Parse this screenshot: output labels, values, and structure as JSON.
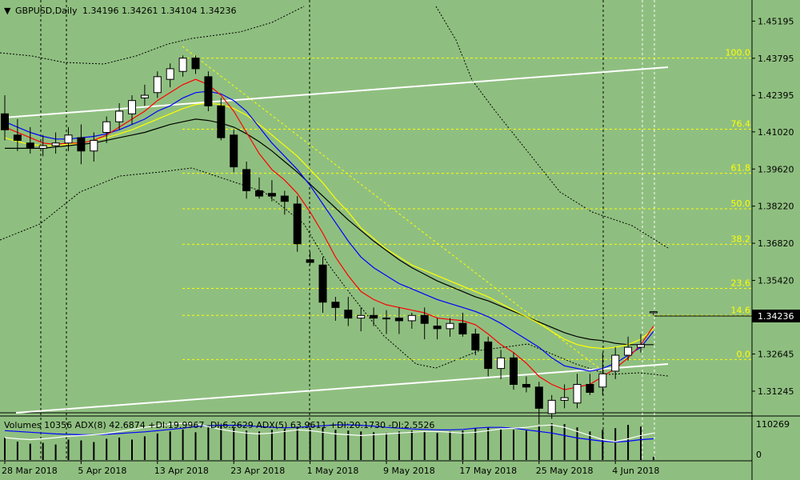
{
  "header": {
    "menu_glyph": "▼",
    "symbol_text": "GBPUSD,Daily",
    "open": "1.34196",
    "high": "1.34261",
    "low": "1.34104",
    "close": "1.34236"
  },
  "indicator_header": "Volumes 10356  ADX(8) 42.6874  +DI:19.9967 -DI:6.2629  ADX(5) 63.9611 +DI:20.1730 -DI:2.5526",
  "price_axis_labels": [
    "1.45195",
    "1.43795",
    "1.42395",
    "1.41020",
    "1.39620",
    "1.38220",
    "1.36820",
    "1.35420",
    "1.34020",
    "1.32645",
    "1.31245"
  ],
  "current_price_label": "1.34236",
  "volume_axis_labels": [
    "110269",
    "0"
  ],
  "date_labels": [
    "28 Mar 2018",
    "5 Apr 2018",
    "13 Apr 2018",
    "23 Apr 2018",
    "1 May 2018",
    "9 May 2018",
    "17 May 2018",
    "25 May 2018",
    "4 Jun 2018"
  ],
  "fib_levels": [
    {
      "label": "100.0",
      "price": 1.438
    },
    {
      "label": "76.4",
      "price": 1.4112
    },
    {
      "label": "61.8",
      "price": 1.3946
    },
    {
      "label": "50.0",
      "price": 1.3812
    },
    {
      "label": "38.2",
      "price": 1.3678
    },
    {
      "label": "23.6",
      "price": 1.3512
    },
    {
      "label": "14.6",
      "price": 1.341
    },
    {
      "label": "0.0",
      "price": 1.3244
    }
  ],
  "colors": {
    "background": "#8fbf80",
    "bull_candle": "#ffffff",
    "bear_candle": "#000000",
    "ma_fast": "#ff0000",
    "ma_mid": "#0000ff",
    "ma_slow": "#ffff00",
    "ma_long": "#000000",
    "fib": "#ffff00",
    "trendline": "#ffffff",
    "volume_bar": "#000000",
    "adx_line": "#0000ff",
    "di_line": "#ffffff"
  },
  "chart_data": {
    "type": "candlestick",
    "symbol": "GBPUSD",
    "timeframe": "Daily",
    "ylim": [
      1.3055,
      1.4575
    ],
    "candles": [
      {
        "o": 1.417,
        "h": 1.424,
        "l": 1.407,
        "c": 1.411
      },
      {
        "o": 1.409,
        "h": 1.415,
        "l": 1.403,
        "c": 1.407
      },
      {
        "o": 1.406,
        "h": 1.412,
        "l": 1.402,
        "c": 1.404
      },
      {
        "o": 1.404,
        "h": 1.409,
        "l": 1.401,
        "c": 1.405
      },
      {
        "o": 1.405,
        "h": 1.41,
        "l": 1.402,
        "c": 1.406
      },
      {
        "o": 1.406,
        "h": 1.412,
        "l": 1.403,
        "c": 1.409
      },
      {
        "o": 1.408,
        "h": 1.413,
        "l": 1.398,
        "c": 1.403
      },
      {
        "o": 1.403,
        "h": 1.41,
        "l": 1.399,
        "c": 1.407
      },
      {
        "o": 1.41,
        "h": 1.416,
        "l": 1.406,
        "c": 1.414
      },
      {
        "o": 1.414,
        "h": 1.421,
        "l": 1.411,
        "c": 1.418
      },
      {
        "o": 1.417,
        "h": 1.424,
        "l": 1.413,
        "c": 1.422
      },
      {
        "o": 1.423,
        "h": 1.428,
        "l": 1.42,
        "c": 1.424
      },
      {
        "o": 1.425,
        "h": 1.433,
        "l": 1.423,
        "c": 1.431
      },
      {
        "o": 1.43,
        "h": 1.436,
        "l": 1.427,
        "c": 1.434
      },
      {
        "o": 1.433,
        "h": 1.439,
        "l": 1.431,
        "c": 1.438
      },
      {
        "o": 1.438,
        "h": 1.439,
        "l": 1.432,
        "c": 1.434
      },
      {
        "o": 1.431,
        "h": 1.433,
        "l": 1.418,
        "c": 1.42
      },
      {
        "o": 1.42,
        "h": 1.423,
        "l": 1.407,
        "c": 1.408
      },
      {
        "o": 1.409,
        "h": 1.411,
        "l": 1.395,
        "c": 1.397
      },
      {
        "o": 1.396,
        "h": 1.399,
        "l": 1.385,
        "c": 1.388
      },
      {
        "o": 1.388,
        "h": 1.393,
        "l": 1.385,
        "c": 1.386
      },
      {
        "o": 1.387,
        "h": 1.392,
        "l": 1.384,
        "c": 1.386
      },
      {
        "o": 1.386,
        "h": 1.388,
        "l": 1.379,
        "c": 1.384
      },
      {
        "o": 1.383,
        "h": 1.386,
        "l": 1.365,
        "c": 1.368
      },
      {
        "o": 1.362,
        "h": 1.365,
        "l": 1.36,
        "c": 1.361
      },
      {
        "o": 1.36,
        "h": 1.363,
        "l": 1.342,
        "c": 1.346
      },
      {
        "o": 1.346,
        "h": 1.348,
        "l": 1.339,
        "c": 1.344
      },
      {
        "o": 1.343,
        "h": 1.348,
        "l": 1.337,
        "c": 1.34
      },
      {
        "o": 1.34,
        "h": 1.344,
        "l": 1.335,
        "c": 1.341
      },
      {
        "o": 1.341,
        "h": 1.344,
        "l": 1.337,
        "c": 1.34
      },
      {
        "o": 1.34,
        "h": 1.343,
        "l": 1.334,
        "c": 1.34
      },
      {
        "o": 1.34,
        "h": 1.344,
        "l": 1.334,
        "c": 1.339
      },
      {
        "o": 1.339,
        "h": 1.342,
        "l": 1.336,
        "c": 1.341
      },
      {
        "o": 1.341,
        "h": 1.344,
        "l": 1.332,
        "c": 1.338
      },
      {
        "o": 1.337,
        "h": 1.34,
        "l": 1.332,
        "c": 1.336
      },
      {
        "o": 1.336,
        "h": 1.34,
        "l": 1.333,
        "c": 1.338
      },
      {
        "o": 1.338,
        "h": 1.342,
        "l": 1.333,
        "c": 1.334
      },
      {
        "o": 1.334,
        "h": 1.336,
        "l": 1.326,
        "c": 1.328
      },
      {
        "o": 1.331,
        "h": 1.333,
        "l": 1.318,
        "c": 1.321
      },
      {
        "o": 1.321,
        "h": 1.328,
        "l": 1.317,
        "c": 1.325
      },
      {
        "o": 1.325,
        "h": 1.327,
        "l": 1.313,
        "c": 1.315
      },
      {
        "o": 1.315,
        "h": 1.318,
        "l": 1.312,
        "c": 1.314
      },
      {
        "o": 1.314,
        "h": 1.316,
        "l": 1.3,
        "c": 1.306
      },
      {
        "o": 1.304,
        "h": 1.311,
        "l": 1.302,
        "c": 1.309
      },
      {
        "o": 1.309,
        "h": 1.315,
        "l": 1.306,
        "c": 1.31
      },
      {
        "o": 1.308,
        "h": 1.319,
        "l": 1.306,
        "c": 1.315
      },
      {
        "o": 1.315,
        "h": 1.319,
        "l": 1.311,
        "c": 1.312
      },
      {
        "o": 1.314,
        "h": 1.327,
        "l": 1.311,
        "c": 1.319
      },
      {
        "o": 1.32,
        "h": 1.329,
        "l": 1.317,
        "c": 1.326
      },
      {
        "o": 1.326,
        "h": 1.333,
        "l": 1.324,
        "c": 1.329
      },
      {
        "o": 1.329,
        "h": 1.334,
        "l": 1.327,
        "c": 1.33
      },
      {
        "o": 1.342,
        "h": 1.3426,
        "l": 1.341,
        "c": 1.3424
      }
    ],
    "volumes": [
      0.55,
      0.45,
      0.4,
      0.42,
      0.38,
      0.5,
      0.48,
      0.44,
      0.52,
      0.55,
      0.5,
      0.58,
      0.65,
      0.7,
      0.75,
      0.68,
      0.8,
      0.85,
      0.78,
      0.72,
      0.7,
      0.74,
      0.76,
      0.82,
      0.78,
      0.8,
      0.74,
      0.72,
      0.7,
      0.68,
      0.66,
      0.7,
      0.72,
      0.68,
      0.66,
      0.7,
      0.72,
      0.78,
      0.8,
      0.76,
      0.74,
      0.72,
      0.85,
      0.9,
      0.88,
      0.8,
      0.7,
      0.74,
      0.78,
      0.86,
      0.82,
      0.08
    ],
    "ma_fast": [
      1.412,
      1.41,
      1.408,
      1.406,
      1.4055,
      1.406,
      1.406,
      1.407,
      1.409,
      1.412,
      1.415,
      1.418,
      1.422,
      1.425,
      1.428,
      1.43,
      1.428,
      1.424,
      1.418,
      1.41,
      1.402,
      1.396,
      1.392,
      1.387,
      1.38,
      1.372,
      1.363,
      1.356,
      1.35,
      1.347,
      1.345,
      1.344,
      1.343,
      1.342,
      1.34,
      1.3395,
      1.339,
      1.3375,
      1.334,
      1.33,
      1.327,
      1.323,
      1.318,
      1.315,
      1.313,
      1.314,
      1.315,
      1.318,
      1.321,
      1.325,
      1.33,
      1.337
    ],
    "ma_mid": [
      1.414,
      1.412,
      1.41,
      1.4085,
      1.4075,
      1.4075,
      1.408,
      1.4085,
      1.4095,
      1.411,
      1.413,
      1.415,
      1.418,
      1.42,
      1.423,
      1.425,
      1.4255,
      1.4245,
      1.422,
      1.418,
      1.412,
      1.406,
      1.401,
      1.396,
      1.39,
      1.383,
      1.376,
      1.369,
      1.363,
      1.359,
      1.356,
      1.353,
      1.351,
      1.349,
      1.347,
      1.3455,
      1.344,
      1.3425,
      1.3405,
      1.338,
      1.335,
      1.332,
      1.329,
      1.325,
      1.322,
      1.321,
      1.32,
      1.321,
      1.323,
      1.326,
      1.329,
      1.335
    ],
    "ma_slow": [
      1.408,
      1.4065,
      1.4055,
      1.405,
      1.405,
      1.4055,
      1.406,
      1.407,
      1.408,
      1.4095,
      1.411,
      1.413,
      1.415,
      1.417,
      1.419,
      1.4205,
      1.421,
      1.4205,
      1.419,
      1.4165,
      1.413,
      1.409,
      1.405,
      1.401,
      1.396,
      1.391,
      1.385,
      1.38,
      1.374,
      1.37,
      1.366,
      1.363,
      1.36,
      1.358,
      1.356,
      1.354,
      1.352,
      1.35,
      1.348,
      1.3455,
      1.343,
      1.3405,
      1.338,
      1.335,
      1.332,
      1.33,
      1.329,
      1.3285,
      1.329,
      1.33,
      1.332,
      1.336
    ],
    "ma_long": [
      1.404,
      1.404,
      1.404,
      1.404,
      1.4045,
      1.405,
      1.4055,
      1.406,
      1.407,
      1.408,
      1.409,
      1.41,
      1.4115,
      1.413,
      1.414,
      1.415,
      1.4145,
      1.4135,
      1.412,
      1.4095,
      1.4065,
      1.403,
      1.399,
      1.395,
      1.3905,
      1.386,
      1.3815,
      1.377,
      1.373,
      1.369,
      1.3655,
      1.362,
      1.359,
      1.3565,
      1.354,
      1.352,
      1.35,
      1.348,
      1.3465,
      1.3445,
      1.3425,
      1.3405,
      1.3385,
      1.3365,
      1.3345,
      1.333,
      1.332,
      1.3315,
      1.3305,
      1.33,
      1.33,
      1.33
    ],
    "adx": [
      0.72,
      0.7,
      0.68,
      0.66,
      0.64,
      0.63,
      0.62,
      0.62,
      0.63,
      0.65,
      0.67,
      0.69,
      0.72,
      0.75,
      0.78,
      0.82,
      0.84,
      0.85,
      0.85,
      0.84,
      0.82,
      0.8,
      0.79,
      0.8,
      0.82,
      0.84,
      0.86,
      0.86,
      0.85,
      0.83,
      0.8,
      0.78,
      0.76,
      0.75,
      0.74,
      0.74,
      0.75,
      0.78,
      0.8,
      0.8,
      0.78,
      0.74,
      0.7,
      0.66,
      0.6,
      0.54,
      0.5,
      0.46,
      0.44,
      0.46,
      0.5,
      0.52
    ],
    "di": [
      0.55,
      0.52,
      0.5,
      0.52,
      0.55,
      0.58,
      0.6,
      0.62,
      0.65,
      0.7,
      0.75,
      0.8,
      0.84,
      0.88,
      0.9,
      0.88,
      0.82,
      0.75,
      0.7,
      0.66,
      0.64,
      0.66,
      0.7,
      0.74,
      0.72,
      0.68,
      0.64,
      0.62,
      0.6,
      0.62,
      0.64,
      0.66,
      0.68,
      0.7,
      0.7,
      0.68,
      0.66,
      0.68,
      0.72,
      0.76,
      0.78,
      0.8,
      0.84,
      0.86,
      0.8,
      0.7,
      0.6,
      0.5,
      0.45,
      0.52,
      0.6,
      0.66
    ]
  }
}
